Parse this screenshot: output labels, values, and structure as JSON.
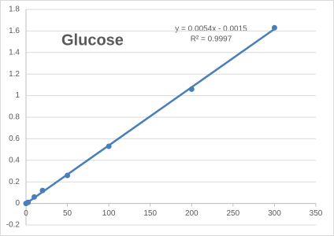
{
  "chart_data": {
    "type": "scatter",
    "title": "Glucose",
    "x": [
      0,
      2.5,
      10,
      20,
      50,
      100,
      200,
      300
    ],
    "values": [
      0,
      0.01,
      0.06,
      0.12,
      0.26,
      0.53,
      1.06,
      1.63
    ],
    "color": "#4a7ebb",
    "xlim": [
      0,
      350
    ],
    "xticks": [
      0,
      50,
      100,
      150,
      200,
      250,
      300,
      350
    ],
    "ylim": [
      -0.2,
      1.8
    ],
    "yticks": [
      -0.2,
      0,
      0.2,
      0.4,
      0.6,
      0.8,
      1,
      1.2,
      1.4,
      1.6,
      1.8
    ],
    "grid": true,
    "trendline": {
      "slope": 0.0054,
      "intercept": -0.0015,
      "equation": "y = 0.0054x - 0.0015",
      "r2": "R² = 0.9997"
    }
  }
}
